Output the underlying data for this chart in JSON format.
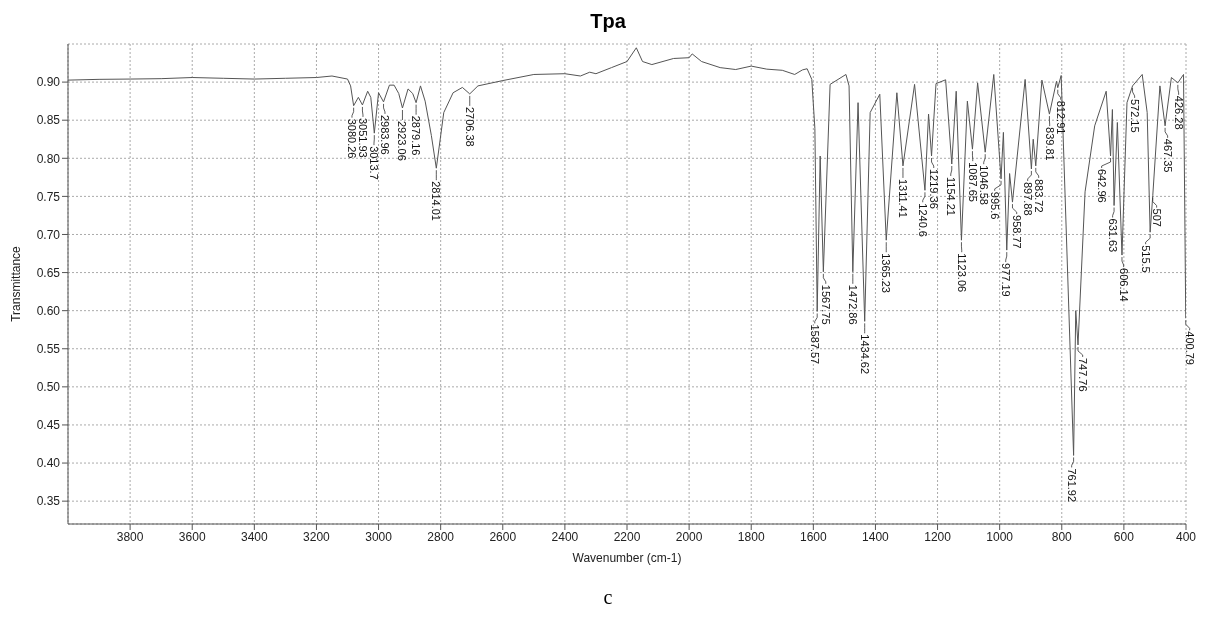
{
  "chart_data": {
    "type": "line",
    "title": "Tpa",
    "xlabel": "Wavenumber (cm-1)",
    "ylabel": "Transmittance",
    "xlim": [
      4000,
      400
    ],
    "ylim": [
      0.32,
      0.95
    ],
    "xticks": [
      3800,
      3600,
      3400,
      3200,
      3000,
      2800,
      2600,
      2400,
      2200,
      2000,
      1800,
      1600,
      1400,
      1200,
      1000,
      800,
      600,
      400
    ],
    "yticks": [
      {
        "value": 0.35,
        "label": "0.35"
      },
      {
        "value": 0.4,
        "label": "0.40"
      },
      {
        "value": 0.45,
        "label": "0.45"
      },
      {
        "value": 0.5,
        "label": "0.50"
      },
      {
        "value": 0.55,
        "label": "0.55"
      },
      {
        "value": 0.6,
        "label": "0.60"
      },
      {
        "value": 0.65,
        "label": "0.65"
      },
      {
        "value": 0.7,
        "label": "0.70"
      },
      {
        "value": 0.75,
        "label": "0.75"
      },
      {
        "value": 0.8,
        "label": "0.80"
      },
      {
        "value": 0.85,
        "label": "0.85"
      },
      {
        "value": 0.9,
        "label": "0.90"
      }
    ],
    "grid": true,
    "marker": "none",
    "line_style": "solid",
    "series": [
      {
        "color": "#555555",
        "x": [
          4000,
          3900,
          3800,
          3700,
          3600,
          3500,
          3400,
          3300,
          3200,
          3150,
          3100,
          3090,
          3080.26,
          3065,
          3051.93,
          3035,
          3025,
          3013.7,
          3000,
          2983.96,
          2965,
          2950,
          2935,
          2923.06,
          2905,
          2890,
          2879.16,
          2865,
          2850,
          2830,
          2814.01,
          2790,
          2760,
          2730,
          2706.38,
          2680,
          2600,
          2500,
          2400,
          2350,
          2320,
          2300,
          2250,
          2200,
          2170,
          2150,
          2120,
          2050,
          2000,
          1990,
          1960,
          1900,
          1850,
          1800,
          1750,
          1700,
          1660,
          1635,
          1620,
          1605,
          1595,
          1587.57,
          1578,
          1567.75,
          1546,
          1495,
          1485,
          1472.86,
          1456,
          1434.62,
          1417,
          1386,
          1365.23,
          1331,
          1311.41,
          1274,
          1240.6,
          1229,
          1219.36,
          1205,
          1174,
          1154.21,
          1140,
          1123.06,
          1104,
          1087.65,
          1071,
          1046.58,
          1019,
          995.6,
          988,
          977.19,
          968,
          958.77,
          918,
          897.88,
          892,
          883.72,
          864,
          839.81,
          817,
          812.91,
          802,
          761.92,
          755,
          747.76,
          725,
          694,
          657,
          642.96,
          637,
          631.63,
          621,
          606.14,
          590,
          572.15,
          541,
          525,
          515.5,
          507,
          484,
          467.35,
          447,
          426.28,
          408,
          400.79
        ],
        "values": [
          0.9026,
          0.9036,
          0.904,
          0.9045,
          0.906,
          0.905,
          0.904,
          0.905,
          0.906,
          0.908,
          0.904,
          0.895,
          0.869,
          0.88,
          0.87,
          0.888,
          0.88,
          0.833,
          0.886,
          0.874,
          0.896,
          0.896,
          0.885,
          0.866,
          0.891,
          0.885,
          0.873,
          0.895,
          0.875,
          0.83,
          0.787,
          0.86,
          0.886,
          0.893,
          0.8845,
          0.895,
          0.902,
          0.91,
          0.911,
          0.908,
          0.913,
          0.911,
          0.919,
          0.927,
          0.945,
          0.927,
          0.923,
          0.931,
          0.932,
          0.937,
          0.927,
          0.919,
          0.9165,
          0.921,
          0.917,
          0.9155,
          0.91,
          0.916,
          0.9175,
          0.9036,
          0.839,
          0.599,
          0.803,
          0.651,
          0.897,
          0.91,
          0.895,
          0.651,
          0.873,
          0.586,
          0.86,
          0.884,
          0.6925,
          0.886,
          0.79,
          0.897,
          0.758,
          0.858,
          0.803,
          0.898,
          0.903,
          0.7925,
          0.888,
          0.6925,
          0.875,
          0.812,
          0.899,
          0.808,
          0.91,
          0.773,
          0.834,
          0.6795,
          0.78,
          0.7425,
          0.9035,
          0.786,
          0.825,
          0.79,
          0.9026,
          0.858,
          0.901,
          0.8926,
          0.9087,
          0.41,
          0.6,
          0.555,
          0.756,
          0.8426,
          0.888,
          0.803,
          0.864,
          0.738,
          0.847,
          0.673,
          0.873,
          0.895,
          0.91,
          0.86,
          0.703,
          0.751,
          0.895,
          0.8426,
          0.906,
          0.899,
          0.91,
          0.59
        ]
      }
    ],
    "annotations": [
      {
        "text": "3080.26",
        "x": 3080.26,
        "y": 0.869
      },
      {
        "text": "3051.93",
        "x": 3051.93,
        "y": 0.87
      },
      {
        "text": "3013.7",
        "x": 3013.7,
        "y": 0.833
      },
      {
        "text": "2983.96",
        "x": 2983.96,
        "y": 0.874
      },
      {
        "text": "2923.06",
        "x": 2923.06,
        "y": 0.866
      },
      {
        "text": "2879.16",
        "x": 2879.16,
        "y": 0.873
      },
      {
        "text": "2814.01",
        "x": 2814.01,
        "y": 0.787
      },
      {
        "text": "2706.38",
        "x": 2706.38,
        "y": 0.8845
      },
      {
        "text": "1587.57",
        "x": 1587.57,
        "y": 0.599
      },
      {
        "text": "1567.75",
        "x": 1567.75,
        "y": 0.651
      },
      {
        "text": "1472.86",
        "x": 1472.86,
        "y": 0.651
      },
      {
        "text": "1434.62",
        "x": 1434.62,
        "y": 0.586
      },
      {
        "text": "1365.23",
        "x": 1365.23,
        "y": 0.6925
      },
      {
        "text": "1311.41",
        "x": 1311.41,
        "y": 0.79
      },
      {
        "text": "1240.6",
        "x": 1240.6,
        "y": 0.758
      },
      {
        "text": "1219.36",
        "x": 1219.36,
        "y": 0.803
      },
      {
        "text": "1154.21",
        "x": 1154.21,
        "y": 0.7925
      },
      {
        "text": "1123.06",
        "x": 1123.06,
        "y": 0.6925
      },
      {
        "text": "1087.65",
        "x": 1087.65,
        "y": 0.812
      },
      {
        "text": "1046.58",
        "x": 1046.58,
        "y": 0.808
      },
      {
        "text": "995.6",
        "x": 995.6,
        "y": 0.773
      },
      {
        "text": "977.19",
        "x": 977.19,
        "y": 0.6795
      },
      {
        "text": "958.77",
        "x": 958.77,
        "y": 0.7425
      },
      {
        "text": "897.88",
        "x": 897.88,
        "y": 0.786
      },
      {
        "text": "883.72",
        "x": 883.72,
        "y": 0.79
      },
      {
        "text": "839.81",
        "x": 839.81,
        "y": 0.858
      },
      {
        "text": "812.91",
        "x": 812.91,
        "y": 0.8926
      },
      {
        "text": "761.92",
        "x": 761.92,
        "y": 0.41
      },
      {
        "text": "747.76",
        "x": 747.76,
        "y": 0.555
      },
      {
        "text": "642.96",
        "x": 642.96,
        "y": 0.803
      },
      {
        "text": "631.63",
        "x": 631.63,
        "y": 0.738
      },
      {
        "text": "606.14",
        "x": 606.14,
        "y": 0.673
      },
      {
        "text": "572.15",
        "x": 572.15,
        "y": 0.895
      },
      {
        "text": "515.5",
        "x": 515.5,
        "y": 0.703
      },
      {
        "text": "507",
        "x": 507,
        "y": 0.751
      },
      {
        "text": "467.35",
        "x": 467.35,
        "y": 0.8426
      },
      {
        "text": "426.28",
        "x": 426.28,
        "y": 0.899
      },
      {
        "text": "400.79",
        "x": 400.79,
        "y": 0.59
      },
      "c"
    ]
  }
}
